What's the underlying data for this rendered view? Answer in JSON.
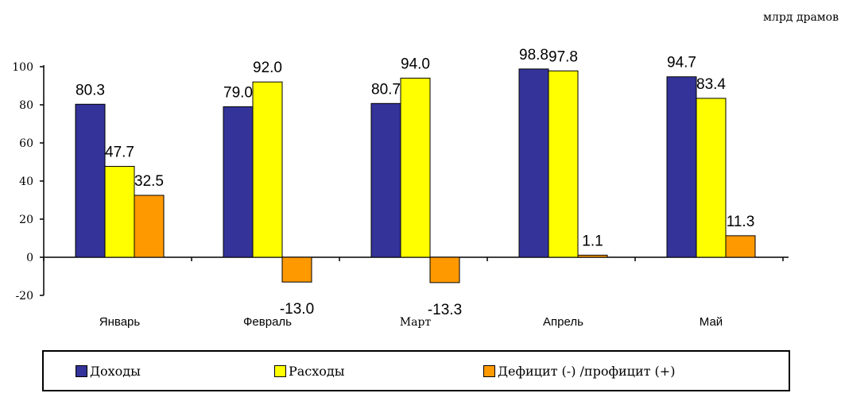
{
  "unit_label": "млрд драмов",
  "chart_data": {
    "type": "bar",
    "categories": [
      "Январь",
      "Февраль",
      "Март",
      "Апрель",
      "Май"
    ],
    "series": [
      {
        "name": "Доходы",
        "color": "#333399",
        "values": [
          80.3,
          79.0,
          80.7,
          98.8,
          94.7
        ],
        "labels": [
          "80.3",
          "79.0",
          "80.7",
          "98.8",
          "94.7"
        ]
      },
      {
        "name": "Расходы",
        "color": "#ffff00",
        "values": [
          47.7,
          92.0,
          94.0,
          97.8,
          83.4
        ],
        "labels": [
          "47.7",
          "92.0",
          "94.0",
          "97.8",
          "83.4"
        ]
      },
      {
        "name": "Дефицит (-) /профицит (+)",
        "color": "#ff9900",
        "values": [
          32.5,
          -13.0,
          -13.3,
          1.1,
          11.3
        ],
        "labels": [
          "32.5",
          "-13.0",
          "-13.3",
          "1.1",
          "11.3"
        ]
      }
    ],
    "ylim": [
      -20,
      100
    ],
    "yticks": [
      "-20",
      "0",
      "20",
      "40",
      "60",
      "80",
      "100"
    ],
    "grid": false,
    "legend_position": "bottom"
  },
  "legend": {
    "items": [
      {
        "label": "Доходы",
        "color": "#333399"
      },
      {
        "label": "Расходы",
        "color": "#ffff00"
      },
      {
        "label": "Дефицит (-) /профицит (+)",
        "color": "#ff9900"
      }
    ]
  }
}
